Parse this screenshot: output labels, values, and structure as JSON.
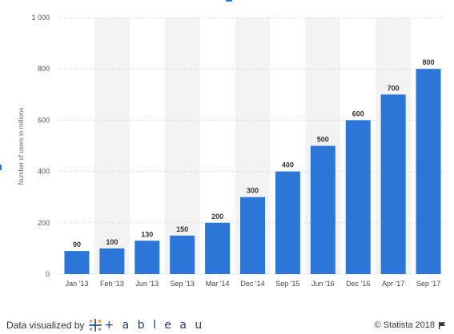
{
  "chart_data": {
    "type": "bar",
    "categories": [
      "Jan '13",
      "Feb '13",
      "Jun '13",
      "Sep '13",
      "Mar '14",
      "Dec '14",
      "Sep '15",
      "Jun '16",
      "Dec '16",
      "Apr '17",
      "Sep '17"
    ],
    "values": [
      90,
      100,
      130,
      150,
      200,
      300,
      400,
      500,
      600,
      700,
      800
    ],
    "value_labels": [
      "90",
      "100",
      "130",
      "150",
      "200",
      "300",
      "400",
      "500",
      "600",
      "700",
      "800"
    ],
    "ylabel": "Number of users in millions",
    "ylim": [
      0,
      1000
    ],
    "yticks": [
      0,
      200,
      400,
      600,
      800,
      1000
    ],
    "ytick_labels": [
      "0",
      "200",
      "400",
      "600",
      "800",
      "1 000"
    ],
    "grid": true,
    "bar_color": "#2c76d8",
    "band_color": "#f3f3f3"
  },
  "footer": {
    "credit_prefix": "Data visualized by",
    "tableau_word": "+ a b l e a u",
    "copyright": "© Statista 2018"
  },
  "icons": {
    "tableau_logo": "tableau-cross-logo-icon",
    "flag": "flag-icon"
  }
}
